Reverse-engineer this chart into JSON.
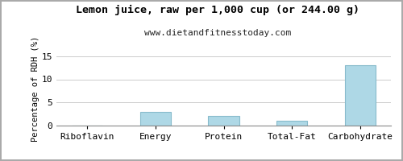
{
  "title": "Lemon juice, raw per 1,000 cup (or 244.00 g)",
  "subtitle": "www.dietandfitnesstoday.com",
  "categories": [
    "Riboflavin",
    "Energy",
    "Protein",
    "Total-Fat",
    "Carbohydrate"
  ],
  "values": [
    0.0,
    3.0,
    2.1,
    1.0,
    13.0
  ],
  "bar_color": "#aed8e6",
  "bar_edge_color": "#88bbcc",
  "ylabel": "Percentage of RDH (%)",
  "ylim": [
    0,
    16
  ],
  "yticks": [
    0,
    5,
    10,
    15
  ],
  "background_color": "#ffffff",
  "grid_color": "#cccccc",
  "title_fontsize": 9.5,
  "subtitle_fontsize": 8,
  "axis_label_fontsize": 7.5,
  "tick_fontsize": 8,
  "border_color": "#aaaaaa"
}
